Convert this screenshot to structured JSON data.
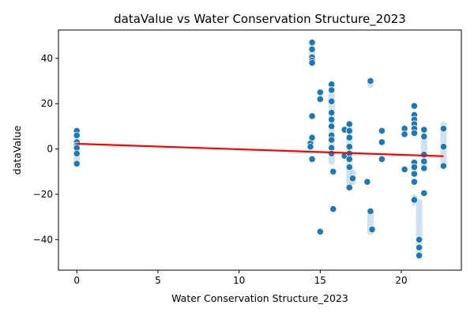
{
  "chart_data": {
    "type": "scatter",
    "title": "dataValue vs Water Conservation Structure_2023",
    "xlabel": "Water Conservation Structure_2023",
    "ylabel": "dataValue",
    "xlim": [
      -1.13,
      23.7
    ],
    "ylim": [
      -53.5,
      52.5
    ],
    "x_ticks": [
      0,
      5,
      10,
      15,
      20
    ],
    "y_ticks": [
      -40,
      -20,
      0,
      20,
      40
    ],
    "x_tick_labels": [
      "0",
      "5",
      "10",
      "15",
      "20"
    ],
    "y_tick_labels": [
      "−40",
      "−20",
      "0",
      "20",
      "40"
    ],
    "grid": false,
    "legend": "none",
    "colors": {
      "point": "#1f77b4",
      "point_edge": "#ffffff",
      "band": "#a6c8e6",
      "trend": "#ff0000",
      "axis": "#000000"
    },
    "series": [
      {
        "points": [
          [
            0,
            8
          ],
          [
            0,
            6
          ],
          [
            0,
            3
          ],
          [
            0,
            1.5
          ],
          [
            0,
            0.5
          ],
          [
            0,
            -2
          ],
          [
            0,
            -6.5
          ],
          [
            14.4,
            2.5
          ],
          [
            14.4,
            1
          ],
          [
            14.5,
            47
          ],
          [
            14.5,
            44
          ],
          [
            14.5,
            40.5
          ],
          [
            14.5,
            39
          ],
          [
            14.5,
            38
          ],
          [
            14.5,
            14.5
          ],
          [
            14.5,
            5
          ],
          [
            14.5,
            -4.5
          ],
          [
            15,
            25
          ],
          [
            15,
            22
          ],
          [
            15,
            -36.5
          ],
          [
            15.7,
            28.5
          ],
          [
            15.7,
            26
          ],
          [
            15.7,
            21
          ],
          [
            15.7,
            16
          ],
          [
            15.7,
            13
          ],
          [
            15.7,
            10
          ],
          [
            15.7,
            6
          ],
          [
            15.7,
            4
          ],
          [
            15.7,
            0.5
          ],
          [
            15.7,
            -2
          ],
          [
            15.8,
            -10
          ],
          [
            15.8,
            -26.5
          ],
          [
            16.5,
            8.5
          ],
          [
            16.5,
            -3
          ],
          [
            16.8,
            11
          ],
          [
            16.8,
            8
          ],
          [
            16.8,
            5
          ],
          [
            16.8,
            1
          ],
          [
            16.8,
            -2
          ],
          [
            16.8,
            -4.5
          ],
          [
            16.8,
            -8
          ],
          [
            16.8,
            -17
          ],
          [
            17,
            -13
          ],
          [
            17.9,
            -14.5
          ],
          [
            18.1,
            30
          ],
          [
            18.1,
            -27.5
          ],
          [
            18.2,
            -35.5
          ],
          [
            18.8,
            8
          ],
          [
            18.8,
            3
          ],
          [
            18.8,
            -4.5
          ],
          [
            20.2,
            9
          ],
          [
            20.2,
            6.5
          ],
          [
            20.2,
            -9
          ],
          [
            20.8,
            19
          ],
          [
            20.8,
            15
          ],
          [
            20.8,
            13
          ],
          [
            20.8,
            11
          ],
          [
            20.8,
            9
          ],
          [
            20.8,
            7
          ],
          [
            20.8,
            -6
          ],
          [
            20.8,
            -8
          ],
          [
            20.8,
            -11
          ],
          [
            20.8,
            -14.5
          ],
          [
            20.8,
            -22.5
          ],
          [
            21.1,
            -40
          ],
          [
            21.1,
            -43.5
          ],
          [
            21.1,
            -47
          ],
          [
            21.4,
            8.5
          ],
          [
            21.4,
            5.5
          ],
          [
            21.4,
            -2.5
          ],
          [
            21.4,
            -5.5
          ],
          [
            21.4,
            -8.5
          ],
          [
            21.4,
            -19.5
          ],
          [
            22.6,
            9
          ],
          [
            22.6,
            1
          ],
          [
            22.6,
            -7.5
          ]
        ]
      }
    ],
    "bands": [
      [
        0,
        -6.5,
        8
      ],
      [
        14.5,
        38,
        47
      ],
      [
        15.7,
        -7,
        30
      ],
      [
        16.8,
        -17,
        11
      ],
      [
        17,
        -16,
        -9
      ],
      [
        18.1,
        27,
        31
      ],
      [
        18.1,
        -38,
        -26
      ],
      [
        20.8,
        -25,
        -20
      ],
      [
        21.1,
        -49,
        -22
      ],
      [
        21.4,
        -9,
        10
      ],
      [
        22.6,
        -9,
        12
      ]
    ],
    "trend_line": {
      "x": [
        0,
        22.6
      ],
      "y": [
        2.3,
        -3.2
      ]
    }
  }
}
